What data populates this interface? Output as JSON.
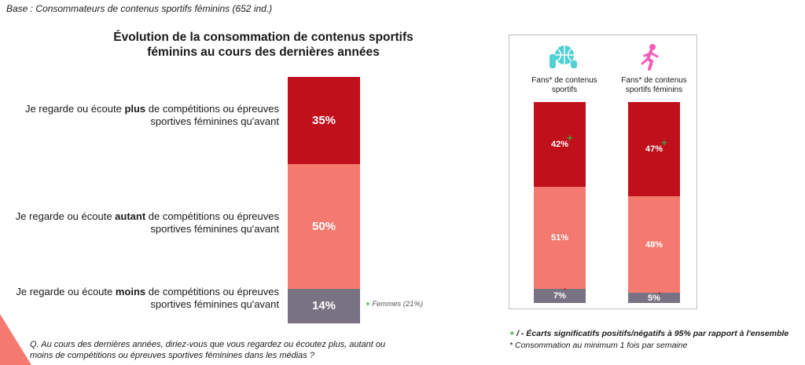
{
  "base_text": "Base : Consommateurs de contenus sportifs féminins (652 ind.)",
  "chart_data": [
    {
      "type": "bar",
      "stacked": true,
      "title": "Évolution de la consommation de contenus sportifs féminins au cours des dernières années",
      "unit": "%",
      "segments": [
        {
          "label_pre": "Je regarde ou écoute ",
          "label_bold": "plus",
          "label_post": " de compétitions ou épreuves sportives féminines qu'avant",
          "value": 35,
          "color": "#c0101b"
        },
        {
          "label_pre": "Je regarde ou écoute ",
          "label_bold": "autant",
          "label_post": " de compétitions ou épreuves sportives féminines qu'avant",
          "value": 50,
          "color": "#f47a6f"
        },
        {
          "label_pre": "Je regarde ou écoute ",
          "label_bold": "moins",
          "label_post": " de compétitions ou épreuves sportives féminines qu'avant",
          "value": 14,
          "color": "#787282"
        }
      ],
      "note": "Femmes (21%)"
    },
    {
      "type": "bar",
      "stacked": true,
      "unit": "%",
      "categories": [
        "Fans* de contenus sportifs",
        "Fans* de contenus sportifs féminins"
      ],
      "series": [
        {
          "name": "plus",
          "values": [
            42,
            47
          ],
          "color": "#c0101b"
        },
        {
          "name": "autant",
          "values": [
            51,
            48
          ],
          "color": "#f47a6f"
        },
        {
          "name": "moins",
          "values": [
            7,
            5
          ],
          "color": "#787282"
        }
      ],
      "significance": {
        "plus": [
          "+",
          "+"
        ],
        "moins": [
          "-",
          "-"
        ]
      }
    }
  ],
  "question": "Q. Au cours des dernières années, diriez-vous que vous regardez ou écoutez plus, autant ou moins de compétitions ou épreuves sportives féminines dans les médias ?",
  "legend_sig": "/ - Écarts significatifs positifs/négatifs à 95% par rapport à l'ensemble",
  "legend_plus": "+",
  "legend_fans": "* Consommation au minimum 1 fois par semaine",
  "icons": [
    "basketball-player-icon",
    "running-woman-icon"
  ]
}
